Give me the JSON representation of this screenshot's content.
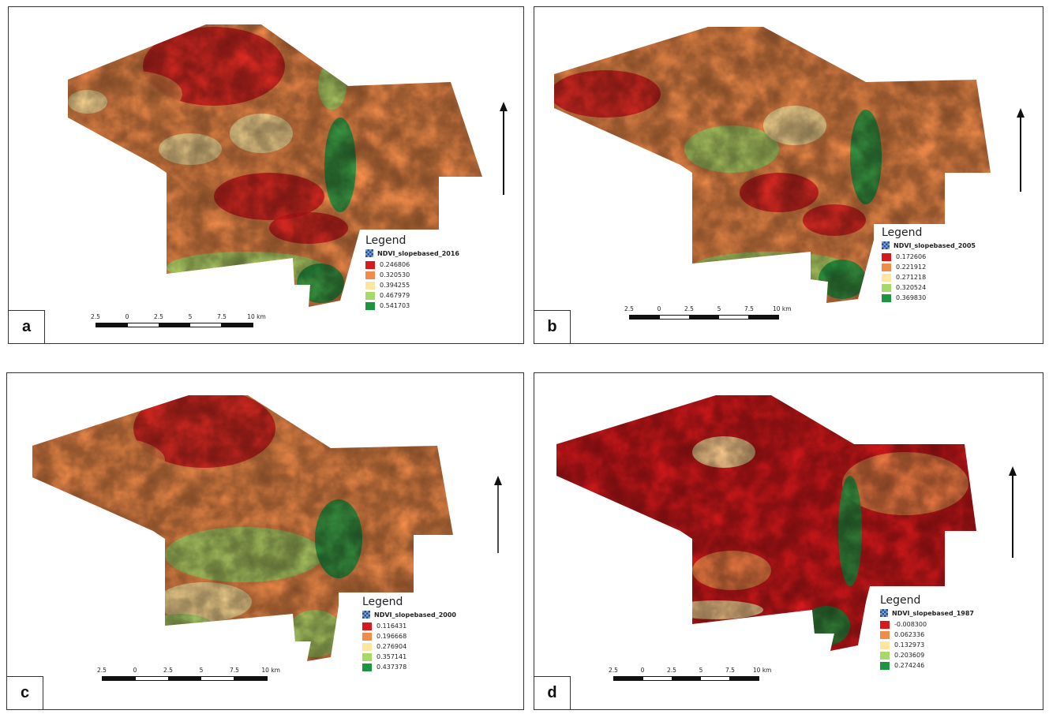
{
  "colors": {
    "c1": "#d7191c",
    "c2": "#f08b4a",
    "c3": "#fee6a0",
    "c4": "#a6d96a",
    "c5": "#1a9641"
  },
  "panels": [
    {
      "label": "a",
      "legend_title": "Legend",
      "layer": "NDVI_slopebased_2016",
      "classes": [
        "0.246806",
        "0.320530",
        "0.394255",
        "0.467979",
        "0.541703"
      ],
      "scale_ticks": [
        "2.5",
        "0",
        "2.5",
        "5",
        "7.5",
        "10 km"
      ],
      "icon": "north-arrow-icon"
    },
    {
      "label": "b",
      "legend_title": "Legend",
      "layer": "NDVI_slopebased_2005",
      "classes": [
        "0.172606",
        "0.221912",
        "0.271218",
        "0.320524",
        "0.369830"
      ],
      "scale_ticks": [
        "2.5",
        "0",
        "2.5",
        "5",
        "7.5",
        "10 km"
      ],
      "icon": "north-arrow-icon"
    },
    {
      "label": "c",
      "legend_title": "Legend",
      "layer": "NDVI_slopebased_2000",
      "classes": [
        "0.116431",
        "0.196668",
        "0.276904",
        "0.357141",
        "0.437378"
      ],
      "scale_ticks": [
        "2.5",
        "0",
        "2.5",
        "5",
        "7.5",
        "10 km"
      ],
      "icon": "north-arrow-icon"
    },
    {
      "label": "d",
      "legend_title": "Legend",
      "layer": "NDVI_slopebased_1987",
      "classes": [
        "-0.008300",
        "0.062336",
        "0.132973",
        "0.203609",
        "0.274246"
      ],
      "scale_ticks": [
        "2.5",
        "0",
        "2.5",
        "5",
        "7.5",
        "10 km"
      ],
      "icon": "north-arrow-icon"
    }
  ]
}
